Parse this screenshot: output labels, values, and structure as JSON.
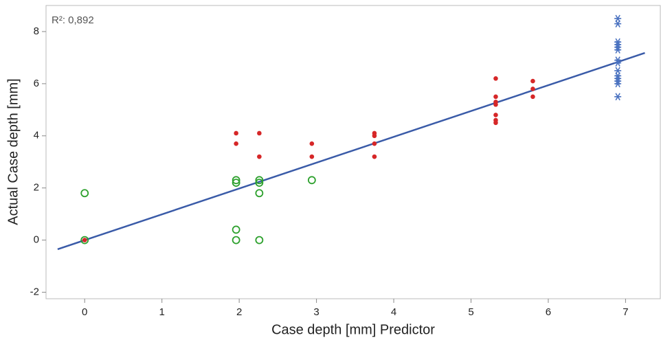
{
  "chart_data": {
    "type": "scatter",
    "annotation": "R²: 0,892",
    "x_label": "Case depth [mm] Predictor",
    "y_label": "Actual Case depth [mm]",
    "xlim": [
      -0.5,
      7.45
    ],
    "ylim": [
      -2.25,
      9.0
    ],
    "xticks": [
      0,
      1,
      2,
      3,
      4,
      5,
      6,
      7
    ],
    "yticks": [
      -2,
      0,
      2,
      4,
      6,
      8
    ],
    "series": [
      {
        "marker": "open-circle",
        "color": "#2ca02c",
        "x": [
          0,
          0,
          1.96,
          1.96,
          1.96,
          1.96,
          2.26,
          2.26,
          2.26,
          2.26,
          2.94
        ],
        "values": [
          0,
          1.8,
          2.3,
          2.2,
          0.4,
          0,
          2.3,
          2.2,
          1.8,
          0,
          2.3
        ]
      },
      {
        "marker": "dot",
        "color": "#d62728",
        "x": [
          0,
          1.96,
          1.96,
          2.26,
          2.26,
          2.94,
          2.94,
          3.75,
          3.75,
          3.75,
          3.75,
          5.32,
          5.32,
          5.32,
          5.32,
          5.32,
          5.32,
          5.32,
          5.8,
          5.8,
          5.8
        ],
        "values": [
          0,
          4.1,
          3.7,
          4.1,
          3.2,
          3.7,
          3.2,
          4.1,
          4.0,
          3.7,
          3.2,
          6.2,
          5.5,
          5.3,
          5.2,
          4.8,
          4.6,
          4.5,
          6.1,
          5.8,
          5.5
        ]
      },
      {
        "marker": "asterisk",
        "color": "#4a72c0",
        "x": [
          6.9,
          6.9,
          6.9,
          6.9,
          6.9,
          6.9,
          6.9,
          6.9,
          6.9,
          6.9,
          6.9,
          6.9,
          6.9,
          6.9
        ],
        "values": [
          8.5,
          8.3,
          7.6,
          7.5,
          7.4,
          7.3,
          6.9,
          6.8,
          6.5,
          6.3,
          6.2,
          6.1,
          6.0,
          5.5
        ]
      }
    ],
    "fit": {
      "color": "#3a5ba8",
      "x": [
        -0.35,
        7.25
      ],
      "values": [
        -0.35,
        7.18
      ]
    }
  }
}
